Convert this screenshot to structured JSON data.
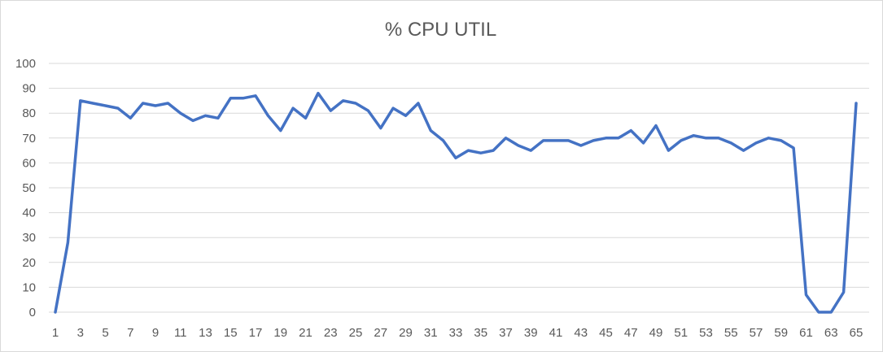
{
  "chart_data": {
    "type": "line",
    "title": "% CPU UTIL",
    "xlabel": "",
    "ylabel": "",
    "ylim": [
      0,
      100
    ],
    "y_ticks": [
      0,
      10,
      20,
      30,
      40,
      50,
      60,
      70,
      80,
      90,
      100
    ],
    "x_tick_labels": [
      1,
      3,
      5,
      7,
      9,
      11,
      13,
      15,
      17,
      19,
      21,
      23,
      25,
      27,
      29,
      31,
      33,
      35,
      37,
      39,
      41,
      43,
      45,
      47,
      49,
      51,
      53,
      55,
      57,
      59,
      61,
      63,
      65
    ],
    "grid": "horizontal",
    "legend": "none",
    "colors": {
      "line": "#4472c4",
      "grid": "#d9d9d9",
      "text": "#595959"
    },
    "x": [
      1,
      2,
      3,
      4,
      5,
      6,
      7,
      8,
      9,
      10,
      11,
      12,
      13,
      14,
      15,
      16,
      17,
      18,
      19,
      20,
      21,
      22,
      23,
      24,
      25,
      26,
      27,
      28,
      29,
      30,
      31,
      32,
      33,
      34,
      35,
      36,
      37,
      38,
      39,
      40,
      41,
      42,
      43,
      44,
      45,
      46,
      47,
      48,
      49,
      50,
      51,
      52,
      53,
      54,
      55,
      56,
      57,
      58,
      59,
      60,
      61,
      62,
      63,
      64,
      65
    ],
    "series": [
      {
        "values": [
          0,
          28,
          85,
          84,
          83,
          82,
          78,
          84,
          83,
          84,
          80,
          77,
          79,
          78,
          86,
          86,
          87,
          79,
          73,
          82,
          78,
          88,
          81,
          85,
          84,
          81,
          74,
          82,
          79,
          84,
          73,
          69,
          62,
          65,
          64,
          65,
          70,
          67,
          65,
          69,
          69,
          69,
          67,
          69,
          70,
          70,
          73,
          68,
          75,
          65,
          69,
          71,
          70,
          70,
          68,
          65,
          68,
          70,
          69,
          66,
          7,
          0,
          0,
          8,
          84
        ]
      }
    ]
  }
}
